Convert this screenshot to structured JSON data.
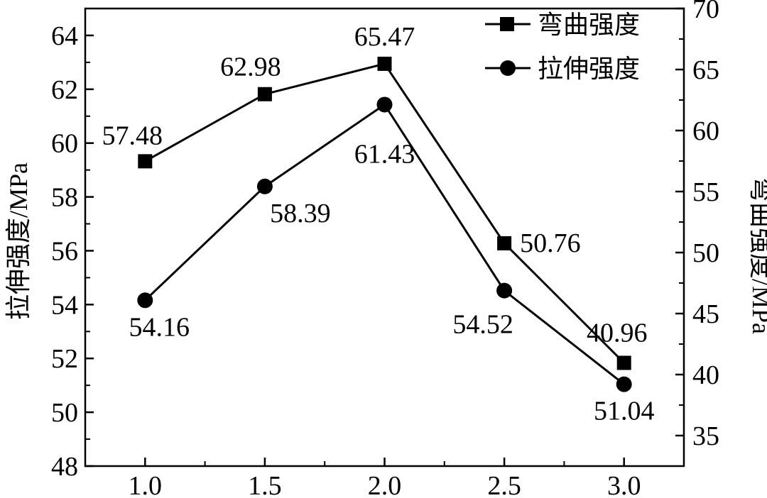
{
  "chart_data": {
    "type": "line",
    "x": [
      1.0,
      1.5,
      2.0,
      2.5,
      3.0
    ],
    "x_tick_labels": [
      "1.0",
      "1.5",
      "2.0",
      "2.5",
      "3.0"
    ],
    "xlim": [
      0.75,
      3.25
    ],
    "xlabel": "",
    "ylabel_left": "拉伸强度/MPa",
    "ylabel_right": "弯曲强度/MPa",
    "ylim_left": [
      48,
      65
    ],
    "ylim_right": [
      32.5,
      70
    ],
    "left_ticks": [
      48,
      50,
      52,
      54,
      56,
      58,
      60,
      62,
      64
    ],
    "right_ticks": [
      35,
      40,
      45,
      50,
      55,
      60,
      65,
      70
    ],
    "grid": false,
    "legend_position": "top-right",
    "series": [
      {
        "name": "弯曲强度",
        "axis": "right",
        "marker": "square",
        "values": [
          57.48,
          62.98,
          65.47,
          50.76,
          40.96
        ],
        "labels": [
          "57.48",
          "62.98",
          "65.47",
          "50.76",
          "40.96"
        ]
      },
      {
        "name": "拉伸强度",
        "axis": "left",
        "marker": "circle",
        "values": [
          54.16,
          58.39,
          61.43,
          54.52,
          51.04
        ],
        "labels": [
          "54.16",
          "58.39",
          "61.43",
          "54.52",
          "51.04"
        ]
      }
    ],
    "colors": {
      "line": "#000000",
      "marker": "#000000"
    }
  }
}
